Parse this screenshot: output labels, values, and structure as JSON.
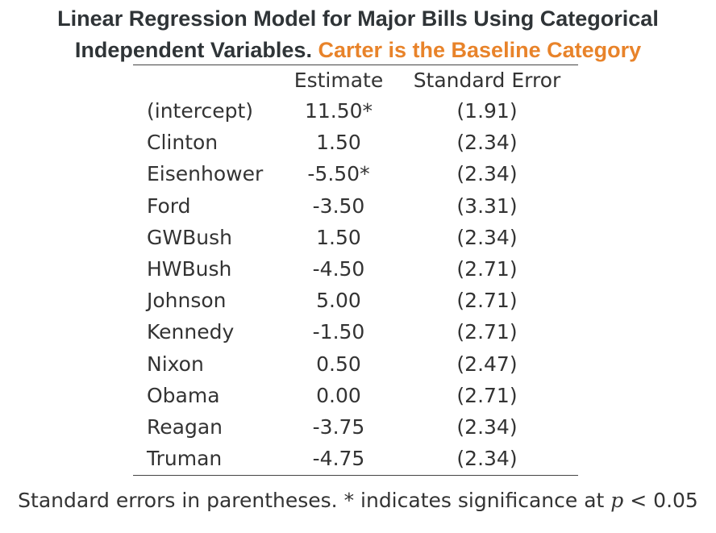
{
  "title": {
    "line1": "Linear Regression Model for Major Bills Using Categorical",
    "line2_main": "Independent Variables.",
    "line2_accent": "Carter is the Baseline Category"
  },
  "colors": {
    "title": "#2f3437",
    "accent": "#e8832a",
    "text": "#333333",
    "rule": "#444444"
  },
  "chart_data": {
    "type": "table",
    "columns": [
      "",
      "Estimate",
      "Standard Error"
    ],
    "rows": [
      {
        "label": "(intercept)",
        "estimate": "11.50*",
        "se": "(1.91)"
      },
      {
        "label": "Clinton",
        "estimate": "1.50",
        "se": "(2.34)"
      },
      {
        "label": "Eisenhower",
        "estimate": "-5.50*",
        "se": "(2.34)"
      },
      {
        "label": "Ford",
        "estimate": "-3.50",
        "se": "(3.31)"
      },
      {
        "label": "GWBush",
        "estimate": "1.50",
        "se": "(2.34)"
      },
      {
        "label": "HWBush",
        "estimate": "-4.50",
        "se": "(2.71)"
      },
      {
        "label": "Johnson",
        "estimate": "5.00",
        "se": "(2.71)"
      },
      {
        "label": "Kennedy",
        "estimate": "-1.50",
        "se": "(2.71)"
      },
      {
        "label": "Nixon",
        "estimate": "0.50",
        "se": "(2.47)"
      },
      {
        "label": "Obama",
        "estimate": "0.00",
        "se": "(2.71)"
      },
      {
        "label": "Reagan",
        "estimate": "-3.75",
        "se": "(2.34)"
      },
      {
        "label": "Truman",
        "estimate": "-4.75",
        "se": "(2.34)"
      }
    ]
  },
  "footnote": {
    "pre": "Standard errors in parentheses. * indicates significance at",
    "var": "p",
    "post": "< 0.05"
  }
}
